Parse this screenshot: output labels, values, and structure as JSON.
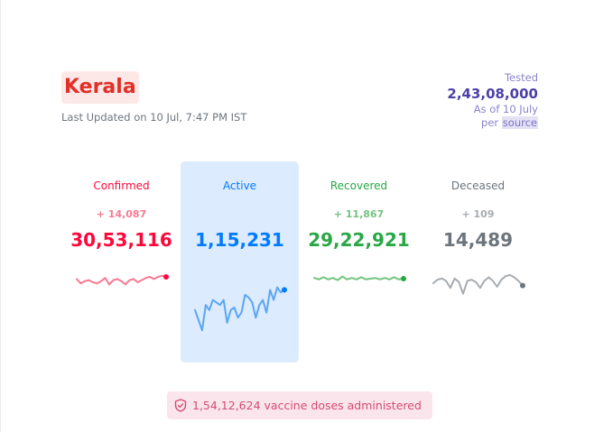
{
  "header": {
    "state_name": "Kerala",
    "last_updated": "Last Updated on 10 Jul, 7:47 PM IST"
  },
  "tested": {
    "label": "Tested",
    "value": "2,43,08,000",
    "as_of": "As of 10 July",
    "per": "per",
    "source_link": "source"
  },
  "cards": [
    {
      "key": "confirmed",
      "label": "Confirmed",
      "delta": "+ 14,087",
      "value": "30,53,116",
      "color": "#ff073a",
      "light": "#f67a92",
      "trend": [
        0.35,
        0.55,
        0.45,
        0.4,
        0.5,
        0.55,
        0.45,
        0.3,
        0.6,
        0.4,
        0.35,
        0.45,
        0.6,
        0.4,
        0.35,
        0.5,
        0.4,
        0.3,
        0.25,
        0.35,
        0.25,
        0.2,
        0.25
      ]
    },
    {
      "key": "active",
      "label": "Active",
      "delta": "",
      "value": "1,15,231",
      "color": "#007bff",
      "light": "#5aa6f3",
      "trend": [
        0.55,
        0.75,
        0.95,
        0.45,
        0.55,
        0.35,
        0.4,
        0.45,
        0.35,
        0.8,
        0.55,
        0.5,
        0.7,
        0.6,
        0.25,
        0.3,
        0.4,
        0.7,
        0.45,
        0.35,
        0.6,
        0.15,
        0.35,
        0.1,
        0.2,
        0.15
      ]
    },
    {
      "key": "recovered",
      "label": "Recovered",
      "delta": "+ 11,867",
      "value": "29,22,921",
      "color": "#28a745",
      "light": "#74c37d",
      "trend": [
        0.45,
        0.55,
        0.4,
        0.55,
        0.45,
        0.6,
        0.35,
        0.55,
        0.45,
        0.55,
        0.4,
        0.55,
        0.5,
        0.45,
        0.55,
        0.45,
        0.55,
        0.4,
        0.55,
        0.5
      ]
    },
    {
      "key": "deceased",
      "label": "Deceased",
      "delta": "+ 109",
      "value": "14,489",
      "color": "#6c757d",
      "light": "#a7acb1",
      "trend": [
        0.5,
        0.35,
        0.3,
        0.4,
        0.7,
        0.3,
        0.45,
        0.95,
        0.4,
        0.35,
        0.45,
        0.7,
        0.4,
        0.25,
        0.4,
        0.65,
        0.35,
        0.2,
        0.15,
        0.25,
        0.4,
        0.6
      ]
    }
  ],
  "vaccine": {
    "text": "1,54,12,624 vaccine doses administered",
    "icon": "shield-check-icon"
  }
}
